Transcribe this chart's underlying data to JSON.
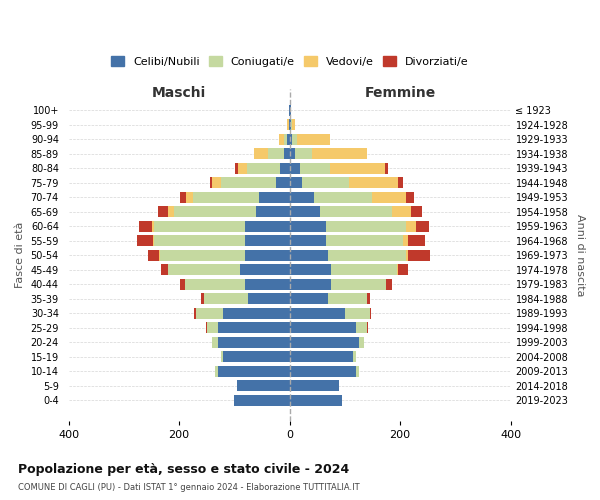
{
  "age_groups": [
    "0-4",
    "5-9",
    "10-14",
    "15-19",
    "20-24",
    "25-29",
    "30-34",
    "35-39",
    "40-44",
    "45-49",
    "50-54",
    "55-59",
    "60-64",
    "65-69",
    "70-74",
    "75-79",
    "80-84",
    "85-89",
    "90-94",
    "95-99",
    "100+"
  ],
  "birth_years": [
    "2019-2023",
    "2014-2018",
    "2009-2013",
    "2004-2008",
    "1999-2003",
    "1994-1998",
    "1989-1993",
    "1984-1988",
    "1979-1983",
    "1974-1978",
    "1969-1973",
    "1964-1968",
    "1959-1963",
    "1954-1958",
    "1949-1953",
    "1944-1948",
    "1939-1943",
    "1934-1938",
    "1929-1933",
    "1924-1928",
    "≤ 1923"
  ],
  "colors": {
    "celibe": "#4472a8",
    "coniugato": "#c5d9a0",
    "vedovo": "#f5c96a",
    "divorziato": "#c0392b"
  },
  "maschi": {
    "celibe": [
      100,
      95,
      130,
      120,
      130,
      130,
      120,
      75,
      80,
      90,
      80,
      80,
      80,
      60,
      55,
      25,
      18,
      10,
      5,
      2,
      2
    ],
    "coniugato": [
      0,
      0,
      5,
      5,
      10,
      20,
      50,
      80,
      110,
      130,
      155,
      165,
      165,
      150,
      120,
      100,
      60,
      30,
      5,
      0,
      0
    ],
    "vedovo": [
      0,
      0,
      0,
      0,
      0,
      0,
      0,
      0,
      0,
      0,
      2,
      3,
      5,
      10,
      12,
      15,
      15,
      25,
      10,
      2,
      0
    ],
    "divorziato": [
      0,
      0,
      0,
      0,
      0,
      2,
      3,
      5,
      8,
      12,
      20,
      28,
      22,
      18,
      12,
      5,
      5,
      0,
      0,
      0,
      0
    ]
  },
  "femmine": {
    "nubile": [
      95,
      90,
      120,
      115,
      125,
      120,
      100,
      70,
      75,
      75,
      70,
      65,
      65,
      55,
      45,
      22,
      18,
      10,
      5,
      2,
      2
    ],
    "coniugata": [
      0,
      0,
      5,
      5,
      10,
      20,
      45,
      70,
      100,
      120,
      140,
      140,
      145,
      130,
      105,
      85,
      55,
      30,
      8,
      2,
      0
    ],
    "vedova": [
      0,
      0,
      0,
      0,
      0,
      0,
      0,
      0,
      0,
      2,
      5,
      10,
      18,
      35,
      60,
      90,
      100,
      100,
      60,
      5,
      0
    ],
    "divorziata": [
      0,
      0,
      0,
      0,
      0,
      2,
      3,
      5,
      10,
      18,
      40,
      30,
      25,
      20,
      15,
      8,
      5,
      0,
      0,
      0,
      0
    ]
  },
  "title": "Popolazione per età, sesso e stato civile - 2024",
  "subtitle": "COMUNE DI CAGLI (PU) - Dati ISTAT 1° gennaio 2024 - Elaborazione TUTTITALIA.IT",
  "xlabel_left": "Maschi",
  "xlabel_right": "Femmine",
  "ylabel_left": "Fasce di età",
  "ylabel_right": "Anni di nascita",
  "xlim": 400,
  "legend_labels": [
    "Celibi/Nubili",
    "Coniugati/e",
    "Vedovi/e",
    "Divorziati/e"
  ]
}
